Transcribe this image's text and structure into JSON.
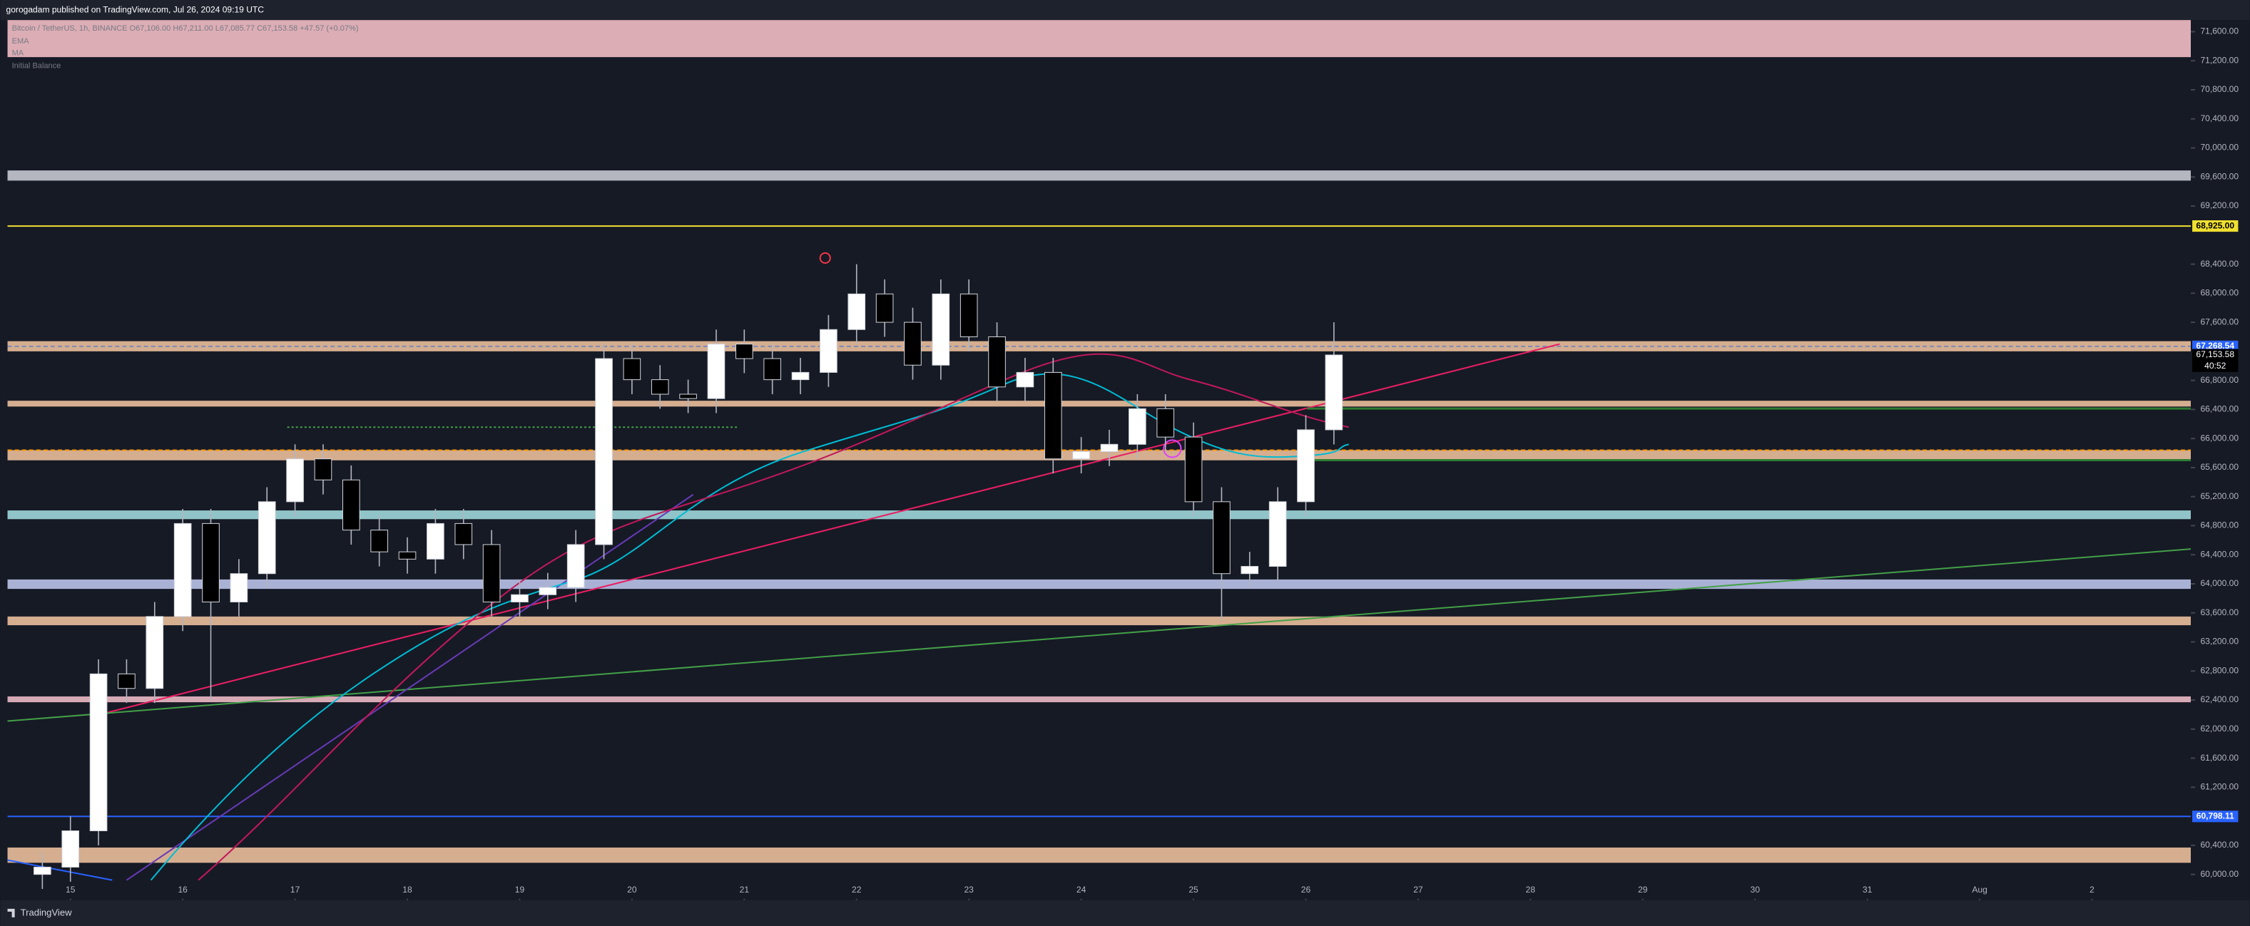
{
  "header": {
    "publisher": "gorogadam published on TradingView.com, Jul 26, 2024 09:19 UTC"
  },
  "footer": {
    "brand": "TradingView"
  },
  "chart_data": {
    "type": "candlestick",
    "legend": [
      "Bitcoin / TetherUS, 1h, BINANCE  O67,106.00  H67,211.00  L67,085.77  C67,153.58  +47.57 (+0.07%)",
      "EMA",
      "MA",
      "Initial Balance"
    ],
    "x": [
      14.75,
      15,
      15.25,
      15.5,
      15.75,
      16,
      16.25,
      16.5,
      16.75,
      17,
      17.25,
      17.5,
      17.75,
      18,
      18.25,
      18.5,
      18.75,
      19,
      19.25,
      19.5,
      19.75,
      20,
      20.25,
      20.5,
      20.75,
      21,
      21.25,
      21.5,
      21.75,
      22,
      22.25,
      22.5,
      22.75,
      23,
      23.25,
      23.5,
      23.75,
      24,
      24.25,
      24.5,
      24.75,
      25,
      25.25,
      25.5,
      25.75,
      26,
      26.25
    ],
    "open": [
      60000,
      60100,
      60600,
      62760,
      62560,
      63550,
      64830,
      63750,
      64140,
      65130,
      65720,
      65430,
      64740,
      64440,
      64340,
      64830,
      64540,
      63750,
      63850,
      63950,
      64540,
      67100,
      66810,
      66610,
      66550,
      67300,
      67100,
      66810,
      66910,
      67500,
      67990,
      67600,
      67010,
      67990,
      67400,
      66710,
      66910,
      65720,
      65820,
      65920,
      66410,
      66020,
      65130,
      64140,
      64240,
      65130,
      66120
    ],
    "high": [
      60300,
      60800,
      62960,
      62960,
      63750,
      65030,
      65030,
      64340,
      65330,
      65920,
      65920,
      65630,
      64940,
      64640,
      65030,
      65030,
      64740,
      64050,
      64150,
      64740,
      67300,
      67300,
      67010,
      66810,
      67500,
      67500,
      67300,
      67110,
      67700,
      68400,
      68190,
      67800,
      68190,
      68190,
      67600,
      67110,
      67110,
      66020,
      66120,
      66610,
      66610,
      66220,
      65330,
      64440,
      65330,
      66320,
      67600
    ],
    "low": [
      59800,
      59900,
      60400,
      62360,
      62360,
      63350,
      62400,
      63550,
      63940,
      64930,
      65230,
      64540,
      64240,
      64140,
      64140,
      64340,
      63550,
      63550,
      63650,
      63750,
      64340,
      66610,
      66410,
      66350,
      66350,
      66900,
      66610,
      66610,
      66710,
      67300,
      67400,
      66810,
      66810,
      67200,
      66510,
      66510,
      65520,
      65520,
      65620,
      65720,
      65820,
      64930,
      63500,
      63940,
      64040,
      64930,
      65920
    ],
    "close": [
      60100,
      60600,
      62760,
      62560,
      63550,
      64830,
      63750,
      64140,
      65130,
      65720,
      65430,
      64740,
      64440,
      64340,
      64830,
      64540,
      63750,
      63850,
      63950,
      64540,
      67100,
      66810,
      66610,
      66550,
      67300,
      67100,
      66810,
      66910,
      67500,
      67990,
      67600,
      67010,
      67990,
      67400,
      66710,
      66910,
      65720,
      65820,
      65920,
      66410,
      66020,
      65130,
      64140,
      64240,
      65130,
      66120,
      67150
    ],
    "up_color": "#ffffff",
    "down_color": "#000000",
    "xlim": [
      14.44,
      33.88
    ],
    "xticks": [
      15,
      16,
      17,
      18,
      19,
      20,
      21,
      22,
      23,
      24,
      25,
      26,
      27,
      28,
      29,
      30,
      31,
      {
        "value": 32,
        "label": "Aug"
      },
      {
        "value": 33,
        "label": "2"
      }
    ],
    "ylim": [
      59645,
      71760
    ],
    "yticks": [
      {
        "value": 60000,
        "label": "60,000.00"
      },
      {
        "value": 60400,
        "label": "60,400.00"
      },
      {
        "value": 61200,
        "label": "61,200.00"
      },
      {
        "value": 61600,
        "label": "61,600.00"
      },
      {
        "value": 62000,
        "label": "62,000.00"
      },
      {
        "value": 62400,
        "label": "62,400.00"
      },
      {
        "value": 62800,
        "label": "62,800.00"
      },
      {
        "value": 63200,
        "label": "63,200.00"
      },
      {
        "value": 63600,
        "label": "63,600.00"
      },
      {
        "value": 64000,
        "label": "64,000.00"
      },
      {
        "value": 64400,
        "label": "64,400.00"
      },
      {
        "value": 64800,
        "label": "64,800.00"
      },
      {
        "value": 65200,
        "label": "65,200.00"
      },
      {
        "value": 65600,
        "label": "65,600.00"
      },
      {
        "value": 66000,
        "label": "66,000.00"
      },
      {
        "value": 66400,
        "label": "66,400.00"
      },
      {
        "value": 66800,
        "label": "66,800.00"
      },
      {
        "value": 67600,
        "label": "67,600.00"
      },
      {
        "value": 68000,
        "label": "68,000.00"
      },
      {
        "value": 68400,
        "label": "68,400.00"
      },
      {
        "value": 69200,
        "label": "69,200.00"
      },
      {
        "value": 69600,
        "label": "69,600.00"
      },
      {
        "value": 70000,
        "label": "70,000.00"
      },
      {
        "value": 70400,
        "label": "70,400.00"
      },
      {
        "value": 70800,
        "label": "70,800.00"
      },
      {
        "value": 71200,
        "label": "71,200.00"
      },
      {
        "value": 71600,
        "label": "71,600.00"
      }
    ],
    "zones": [
      {
        "range": [
          71250,
          71760
        ],
        "color": "#ffc8cf"
      },
      {
        "range": [
          69550,
          69690
        ],
        "color": "#d1d4dc"
      },
      {
        "range": [
          67200,
          67340
        ],
        "color": "#f7c9a3"
      },
      {
        "range": [
          66440,
          66520
        ],
        "color": "#f7c9a3"
      },
      {
        "range": [
          65700,
          65840
        ],
        "color": "#f7c9a3"
      },
      {
        "range": [
          64890,
          65010
        ],
        "color": "#a6e3e5"
      },
      {
        "range": [
          63930,
          64060
        ],
        "color": "#c3ccf4"
      },
      {
        "range": [
          63430,
          63550
        ],
        "color": "#f7c9a3"
      },
      {
        "range": [
          62370,
          62450
        ],
        "color": "#f8c4cf"
      },
      {
        "range": [
          60160,
          60370
        ],
        "color": "#f7c9a3"
      }
    ],
    "levels": [
      {
        "value": 68925,
        "color": "#f0e030",
        "label": "68,925.00",
        "label_bg": "#f0e030",
        "label_fg": "#000000"
      },
      {
        "value": 60798.11,
        "color": "#2962ff",
        "label": "60,798.11",
        "label_bg": "#2962ff",
        "label_fg": "#ffffff"
      },
      {
        "value": 67268.54,
        "color": "#7b8bb8",
        "dashed": true,
        "label": "67,268.54",
        "label_bg": "#2962ff",
        "label_fg": "#ffffff"
      },
      {
        "value": 65840,
        "color": "#ff9800",
        "dashed": true
      }
    ],
    "last_price": {
      "value": 67153.58,
      "label": "67,153.58",
      "countdown": "40:52"
    }
  }
}
